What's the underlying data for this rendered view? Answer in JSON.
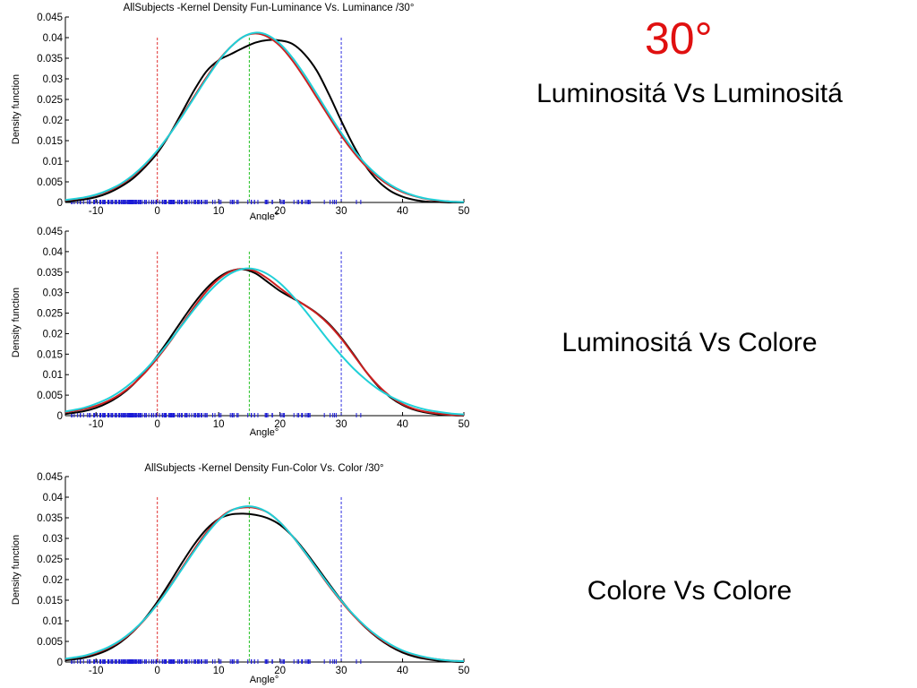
{
  "slide": {
    "heading": "30°",
    "heading_color": "#e01010",
    "subtitles": [
      "Luminositá  Vs Luminositá",
      "Luminositá Vs Colore",
      "Colore Vs Colore"
    ]
  },
  "chart_data": [
    {
      "type": "line",
      "title": "AllSubjects -Kernel Density Fun-Luminance Vs. Luminance /30°",
      "xlabel": "Angle°",
      "ylabel": "Density function",
      "xlim": [
        -15,
        50
      ],
      "ylim": [
        0,
        0.045
      ],
      "xticks": [
        -10,
        0,
        10,
        20,
        30,
        40,
        50
      ],
      "yticks": [
        0,
        0.005,
        0.01,
        0.015,
        0.02,
        0.025,
        0.03,
        0.035,
        0.04,
        0.045
      ],
      "ytick_labels": [
        "0",
        "0.005",
        "0.01",
        "0.015",
        "0.02",
        "0.025",
        "0.03",
        "0.035",
        "0.04",
        "0.045"
      ],
      "grid": false,
      "vlines": [
        {
          "x": 0,
          "color": "#e03030"
        },
        {
          "x": 15,
          "color": "#20c020"
        },
        {
          "x": 30,
          "color": "#3030e0"
        }
      ],
      "series": [
        {
          "color": "#000000",
          "x": [
            -15,
            -12,
            -10,
            -8,
            -6,
            -4,
            -2,
            0,
            2,
            4,
            6,
            8,
            10,
            12,
            14,
            16,
            18,
            20,
            22,
            24,
            26,
            28,
            30,
            32,
            34,
            36,
            38,
            40,
            42,
            44,
            46,
            48,
            50
          ],
          "y": [
            0.0002,
            0.0007,
            0.0013,
            0.0023,
            0.0038,
            0.0058,
            0.0086,
            0.012,
            0.0165,
            0.0218,
            0.0272,
            0.0318,
            0.0345,
            0.036,
            0.0375,
            0.0388,
            0.0394,
            0.0393,
            0.0385,
            0.036,
            0.032,
            0.0262,
            0.0198,
            0.0138,
            0.0088,
            0.0052,
            0.0028,
            0.0014,
            0.0006,
            0.0002,
            0.0001,
            0,
            0
          ]
        },
        {
          "color": "#cc2020",
          "x": [
            -15,
            -12,
            -10,
            -8,
            -6,
            -4,
            -2,
            0,
            2,
            4,
            6,
            8,
            10,
            12,
            14,
            16,
            18,
            20,
            22,
            24,
            26,
            28,
            30,
            32,
            34,
            36,
            38,
            40,
            42,
            44,
            46,
            48,
            50
          ],
          "y": [
            0.0005,
            0.0011,
            0.0018,
            0.0028,
            0.0043,
            0.0064,
            0.0091,
            0.0125,
            0.0165,
            0.021,
            0.0257,
            0.0303,
            0.0345,
            0.0378,
            0.0402,
            0.041,
            0.0402,
            0.038,
            0.0345,
            0.0302,
            0.0255,
            0.0208,
            0.0162,
            0.0122,
            0.0088,
            0.0061,
            0.004,
            0.0025,
            0.0015,
            0.0008,
            0.0004,
            0.0002,
            0.0001
          ]
        },
        {
          "color": "#20d0d8",
          "x": [
            -15,
            -12,
            -10,
            -8,
            -6,
            -4,
            -2,
            0,
            2,
            4,
            6,
            8,
            10,
            12,
            14,
            16,
            18,
            20,
            22,
            24,
            26,
            28,
            30,
            32,
            34,
            36,
            38,
            40,
            42,
            44,
            46,
            48,
            50
          ],
          "y": [
            0.0006,
            0.0012,
            0.0019,
            0.003,
            0.0045,
            0.0066,
            0.0093,
            0.0126,
            0.0165,
            0.0208,
            0.0254,
            0.03,
            0.0343,
            0.0378,
            0.0402,
            0.0412,
            0.0406,
            0.0385,
            0.0352,
            0.031,
            0.0263,
            0.0215,
            0.0169,
            0.0128,
            0.0093,
            0.0065,
            0.0043,
            0.0027,
            0.0016,
            0.0009,
            0.0005,
            0.0002,
            0.0001
          ]
        }
      ]
    },
    {
      "type": "line",
      "title": "",
      "xlabel": "Angle°",
      "ylabel": "Density function",
      "xlim": [
        -15,
        50
      ],
      "ylim": [
        0,
        0.045
      ],
      "xticks": [
        -10,
        0,
        10,
        20,
        30,
        40,
        50
      ],
      "yticks": [
        0,
        0.005,
        0.01,
        0.015,
        0.02,
        0.025,
        0.03,
        0.035,
        0.04,
        0.045
      ],
      "ytick_labels": [
        "0",
        "0.005",
        "0.01",
        "0.015",
        "0.02",
        "0.025",
        "0.03",
        "0.035",
        "0.04",
        "0.045"
      ],
      "grid": false,
      "vlines": [
        {
          "x": 0,
          "color": "#e03030"
        },
        {
          "x": 15,
          "color": "#20c020"
        },
        {
          "x": 30,
          "color": "#3030e0"
        }
      ],
      "series": [
        {
          "color": "#000000",
          "x": [
            -15,
            -12,
            -10,
            -8,
            -6,
            -4,
            -2,
            0,
            2,
            4,
            6,
            8,
            10,
            12,
            14,
            16,
            18,
            20,
            22,
            24,
            26,
            28,
            30,
            32,
            34,
            36,
            38,
            40,
            42,
            44,
            46,
            48,
            50
          ],
          "y": [
            0.0004,
            0.0011,
            0.0019,
            0.0032,
            0.005,
            0.0075,
            0.0108,
            0.0146,
            0.0188,
            0.0232,
            0.0274,
            0.031,
            0.0337,
            0.0353,
            0.0357,
            0.0347,
            0.0326,
            0.0304,
            0.0287,
            0.027,
            0.025,
            0.0224,
            0.019,
            0.015,
            0.0108,
            0.0072,
            0.0045,
            0.0026,
            0.0014,
            0.0007,
            0.0003,
            0.0001,
            0
          ]
        },
        {
          "color": "#cc2020",
          "x": [
            -15,
            -12,
            -10,
            -8,
            -6,
            -4,
            -2,
            0,
            2,
            4,
            6,
            8,
            10,
            12,
            14,
            16,
            18,
            20,
            22,
            24,
            26,
            28,
            30,
            32,
            34,
            36,
            38,
            40,
            42,
            44,
            46,
            48,
            50
          ],
          "y": [
            0.0008,
            0.0016,
            0.0024,
            0.0036,
            0.0053,
            0.0076,
            0.0105,
            0.014,
            0.0179,
            0.0222,
            0.0265,
            0.0303,
            0.0333,
            0.0352,
            0.0358,
            0.0352,
            0.0334,
            0.0311,
            0.0289,
            0.027,
            0.0249,
            0.0222,
            0.0188,
            0.0148,
            0.0108,
            0.0074,
            0.0047,
            0.0028,
            0.0016,
            0.0009,
            0.0005,
            0.0002,
            0.0001
          ]
        },
        {
          "color": "#20d0d8",
          "x": [
            -15,
            -12,
            -10,
            -8,
            -6,
            -4,
            -2,
            0,
            2,
            4,
            6,
            8,
            10,
            12,
            14,
            16,
            18,
            20,
            22,
            24,
            26,
            28,
            30,
            32,
            34,
            36,
            38,
            40,
            42,
            44,
            46,
            48,
            50
          ],
          "y": [
            0.001,
            0.0019,
            0.0029,
            0.0042,
            0.006,
            0.0083,
            0.0111,
            0.0144,
            0.0181,
            0.022,
            0.0259,
            0.0295,
            0.0325,
            0.0347,
            0.0358,
            0.0357,
            0.0345,
            0.0323,
            0.0293,
            0.0258,
            0.022,
            0.0182,
            0.0147,
            0.0115,
            0.0088,
            0.0065,
            0.0047,
            0.0033,
            0.0022,
            0.0014,
            0.0009,
            0.0005,
            0.0003
          ]
        }
      ]
    },
    {
      "type": "line",
      "title": "AllSubjects -Kernel Density Fun-Color Vs. Color /30°",
      "xlabel": "Angle°",
      "ylabel": "Density function",
      "xlim": [
        -15,
        50
      ],
      "ylim": [
        0,
        0.045
      ],
      "xticks": [
        -10,
        0,
        10,
        20,
        30,
        40,
        50
      ],
      "yticks": [
        0,
        0.005,
        0.01,
        0.015,
        0.02,
        0.025,
        0.03,
        0.035,
        0.04,
        0.045
      ],
      "ytick_labels": [
        "0",
        "0.005",
        "0.01",
        "0.015",
        "0.02",
        "0.025",
        "0.03",
        "0.035",
        "0.04",
        "0.045"
      ],
      "grid": false,
      "vlines": [
        {
          "x": 0,
          "color": "#e03030"
        },
        {
          "x": 15,
          "color": "#20c020"
        },
        {
          "x": 30,
          "color": "#3030e0"
        }
      ],
      "series": [
        {
          "color": "#000000",
          "x": [
            -15,
            -12,
            -10,
            -8,
            -6,
            -4,
            -2,
            0,
            2,
            4,
            6,
            8,
            10,
            12,
            14,
            16,
            18,
            20,
            22,
            24,
            26,
            28,
            30,
            32,
            34,
            36,
            38,
            40,
            42,
            44,
            46,
            48,
            50
          ],
          "y": [
            0.0004,
            0.001,
            0.0018,
            0.003,
            0.0048,
            0.0073,
            0.0106,
            0.0146,
            0.0192,
            0.024,
            0.0285,
            0.0322,
            0.0347,
            0.0358,
            0.036,
            0.0357,
            0.0349,
            0.0333,
            0.0306,
            0.0271,
            0.0231,
            0.019,
            0.015,
            0.0114,
            0.0083,
            0.0058,
            0.0038,
            0.0023,
            0.0013,
            0.0007,
            0.0003,
            0.0001,
            0
          ]
        },
        {
          "color": "#cc2020",
          "x": [
            -15,
            -12,
            -10,
            -8,
            -6,
            -4,
            -2,
            0,
            2,
            4,
            6,
            8,
            10,
            12,
            14,
            16,
            18,
            20,
            22,
            24,
            26,
            28,
            30,
            32,
            34,
            36,
            38,
            40,
            42,
            44,
            46,
            48,
            50
          ],
          "y": [
            0.0007,
            0.0014,
            0.0022,
            0.0034,
            0.0051,
            0.0074,
            0.0104,
            0.0141,
            0.0183,
            0.0228,
            0.0273,
            0.0314,
            0.0347,
            0.0368,
            0.0375,
            0.0374,
            0.0363,
            0.0339,
            0.0306,
            0.0267,
            0.0226,
            0.0185,
            0.0147,
            0.0113,
            0.0084,
            0.006,
            0.0041,
            0.0027,
            0.0017,
            0.001,
            0.0006,
            0.0003,
            0.0002
          ]
        },
        {
          "color": "#20d0d8",
          "x": [
            -15,
            -12,
            -10,
            -8,
            -6,
            -4,
            -2,
            0,
            2,
            4,
            6,
            8,
            10,
            12,
            14,
            16,
            18,
            20,
            22,
            24,
            26,
            28,
            30,
            32,
            34,
            36,
            38,
            40,
            42,
            44,
            46,
            48,
            50
          ],
          "y": [
            0.0008,
            0.0015,
            0.0024,
            0.0036,
            0.0053,
            0.0076,
            0.0105,
            0.014,
            0.0181,
            0.0225,
            0.0269,
            0.031,
            0.0344,
            0.0367,
            0.0377,
            0.0376,
            0.0363,
            0.0339,
            0.0306,
            0.0268,
            0.0227,
            0.0187,
            0.0149,
            0.0115,
            0.0086,
            0.0062,
            0.0043,
            0.0028,
            0.0018,
            0.0011,
            0.0006,
            0.0003,
            0.0002
          ]
        }
      ]
    }
  ]
}
